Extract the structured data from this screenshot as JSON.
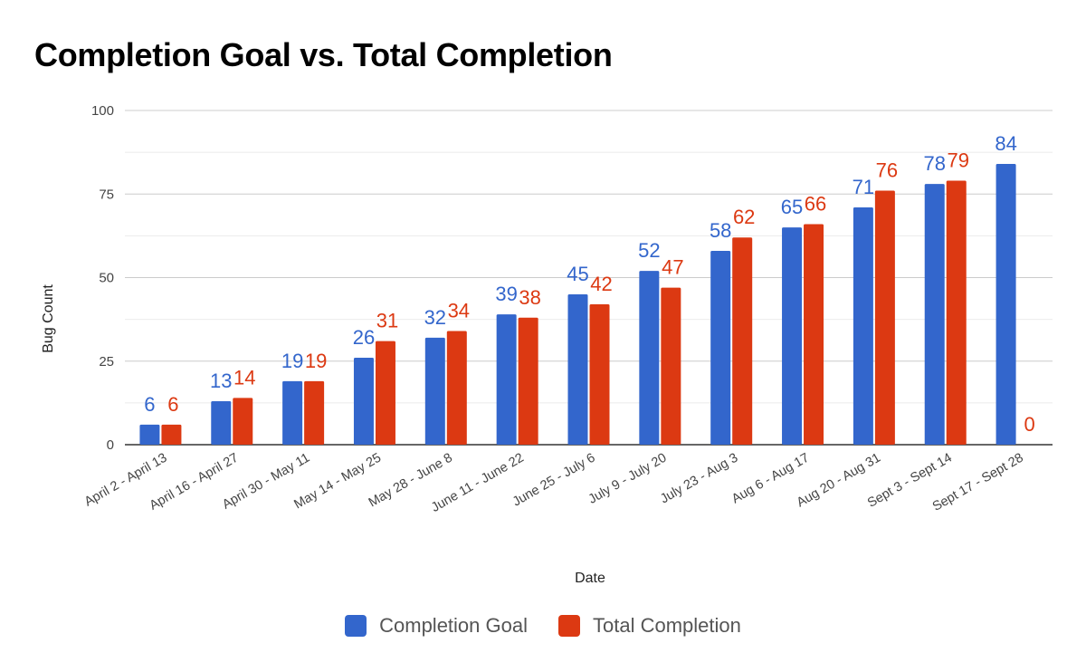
{
  "chart_data": {
    "type": "bar",
    "title": "Completion Goal vs. Total Completion",
    "xlabel": "Date",
    "ylabel": "Bug Count",
    "ylim": [
      0,
      100
    ],
    "yticks": [
      "0",
      "25",
      "50",
      "75",
      "100"
    ],
    "grid": true,
    "legend_position": "bottom",
    "categories": [
      "April 2 - April 13",
      "April 16 - April 27",
      "April 30 - May 11",
      "May 14 - May 25",
      "May 28 - June 8",
      "June 11 - June 22",
      "June 25 - July 6",
      "July 9 - July 20",
      "July 23 - Aug 3",
      "Aug 6 - Aug 17",
      "Aug 20 - Aug 31",
      "Sept 3 - Sept 14",
      "Sept 17 - Sept 28"
    ],
    "series": [
      {
        "name": "Completion Goal",
        "color": "#3366cc",
        "values": [
          6,
          13,
          19,
          26,
          32,
          39,
          45,
          52,
          58,
          65,
          71,
          78,
          84
        ]
      },
      {
        "name": "Total Completion",
        "color": "#dc3912",
        "values": [
          6,
          14,
          19,
          31,
          34,
          38,
          42,
          47,
          62,
          66,
          76,
          79,
          0
        ]
      }
    ]
  }
}
